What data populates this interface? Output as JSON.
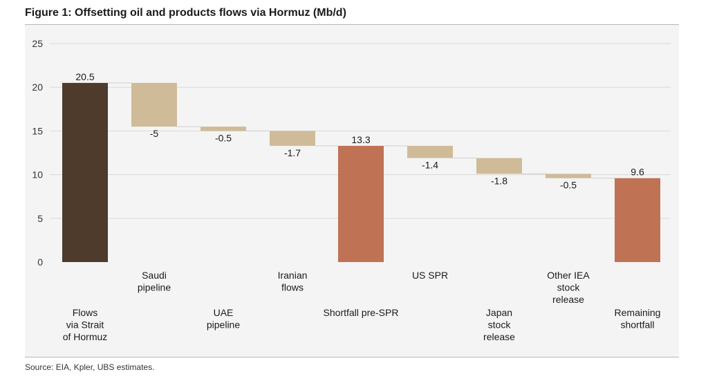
{
  "title": "Figure 1: Offsetting oil and products flows via Hormuz (Mb/d)",
  "source": "Source: EIA, Kpler, UBS estimates.",
  "colors": {
    "total_dark": "#4e3b2c",
    "subtotal": "#c07255",
    "decrease": "#cfbb98",
    "grid": "#d9d9d9",
    "connector": "#cfcfcf"
  },
  "chart_data": {
    "type": "waterfall",
    "title": "Figure 1: Offsetting oil and products flows via Hormuz (Mb/d)",
    "ylim": [
      0,
      25
    ],
    "yticks": [
      0,
      5,
      10,
      15,
      20,
      25
    ],
    "grid": true,
    "bars": [
      {
        "name": "Flows via Strait of Hormuz",
        "label_lines": [
          "Flows",
          "via Strait",
          "of Hormuz"
        ],
        "kind": "total",
        "value": 20.5,
        "value_label": "20.5",
        "label_row": "lower"
      },
      {
        "name": "Saudi pipeline",
        "label_lines": [
          "Saudi",
          "pipeline"
        ],
        "kind": "delta",
        "value": -5,
        "value_label": "-5",
        "label_row": "upper"
      },
      {
        "name": "UAE pipeline",
        "label_lines": [
          "UAE",
          "pipeline"
        ],
        "kind": "delta",
        "value": -0.5,
        "value_label": "-0.5",
        "label_row": "lower"
      },
      {
        "name": "Iranian flows",
        "label_lines": [
          "Iranian",
          "flows"
        ],
        "kind": "delta",
        "value": -1.7,
        "value_label": "-1.7",
        "label_row": "upper"
      },
      {
        "name": "Shortfall pre-SPR",
        "label_lines": [
          "Shortfall pre-SPR"
        ],
        "kind": "subtotal",
        "value": 13.3,
        "value_label": "13.3",
        "label_row": "lower"
      },
      {
        "name": "US SPR",
        "label_lines": [
          "US SPR"
        ],
        "kind": "delta",
        "value": -1.4,
        "value_label": "-1.4",
        "label_row": "upper"
      },
      {
        "name": "Japan stock release",
        "label_lines": [
          "Japan",
          "stock",
          "release"
        ],
        "kind": "delta",
        "value": -1.8,
        "value_label": "-1.8",
        "label_row": "lower"
      },
      {
        "name": "Other IEA stock release",
        "label_lines": [
          "Other IEA",
          "stock",
          "release"
        ],
        "kind": "delta",
        "value": -0.5,
        "value_label": "-0.5",
        "label_row": "upper"
      },
      {
        "name": "Remaining shortfall",
        "label_lines": [
          "Remaining",
          "shortfall"
        ],
        "kind": "subtotal",
        "value": 9.6,
        "value_label": "9.6",
        "label_row": "lower"
      }
    ]
  }
}
